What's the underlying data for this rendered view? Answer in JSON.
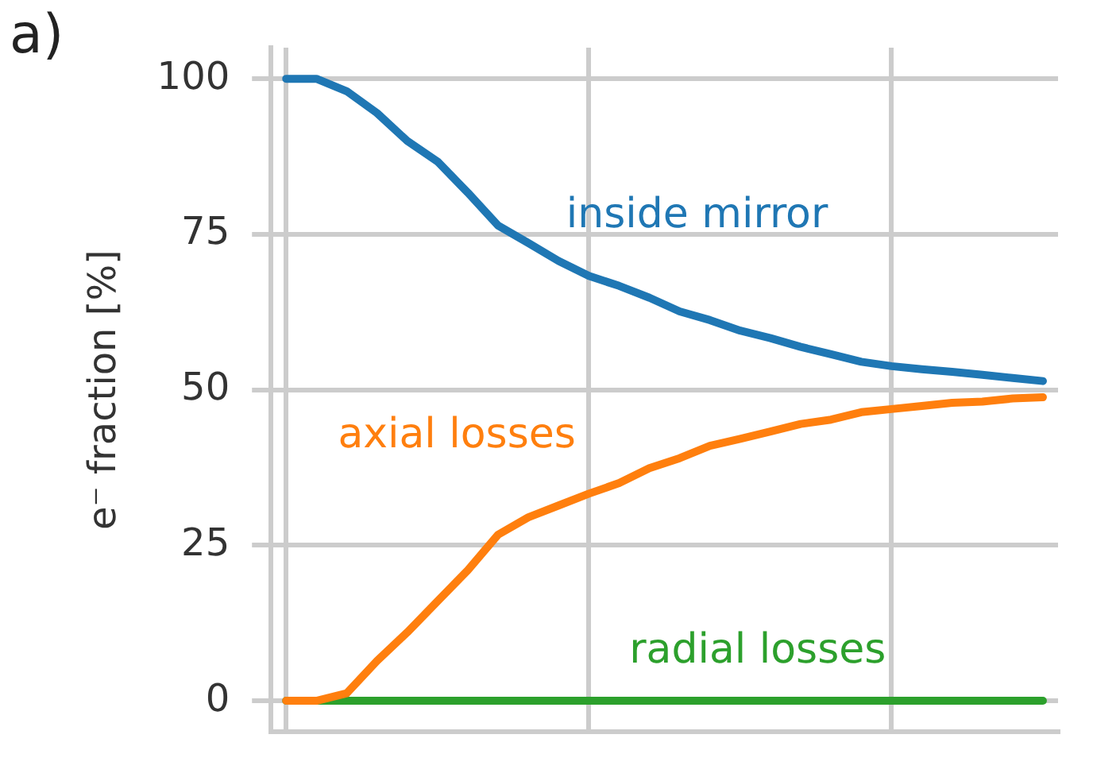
{
  "chart_data": {
    "type": "line",
    "title": "a)",
    "ylabel": "e⁻ fraction [%]",
    "categories": [
      null,
      null,
      null,
      null,
      null,
      null,
      null,
      null,
      null,
      null,
      null,
      null,
      null,
      null,
      null,
      null,
      null,
      null,
      null,
      null,
      null,
      null,
      null,
      null,
      null,
      null
    ],
    "series": [
      {
        "name": "inside mirror",
        "color": "#1f77b4",
        "values": [
          100,
          100,
          98,
          94.5,
          90,
          86.7,
          81.7,
          76.4,
          73.6,
          70.7,
          68.3,
          66.7,
          64.8,
          62.6,
          61.2,
          59.5,
          58.3,
          56.9,
          55.7,
          54.5,
          53.8,
          53.3,
          52.9,
          52.4,
          51.9,
          51.4
        ]
      },
      {
        "name": "axial losses",
        "color": "#ff7f0e",
        "values": [
          0,
          0,
          1.2,
          6.4,
          11,
          16,
          21,
          26.7,
          29.5,
          31.4,
          33.3,
          35,
          37.4,
          39,
          41,
          42.1,
          43.3,
          44.5,
          45.2,
          46.4,
          46.9,
          47.4,
          47.9,
          48.1,
          48.6,
          48.8
        ]
      },
      {
        "name": "radial losses",
        "color": "#2ca02c",
        "values": [
          0,
          0,
          0,
          0,
          0,
          0,
          0,
          0,
          0,
          0,
          0,
          0,
          0,
          0,
          0,
          0,
          0,
          0,
          0,
          0,
          0,
          0,
          0,
          0,
          0,
          0
        ]
      }
    ],
    "ylim": [
      -5,
      105
    ],
    "yticks": [
      0,
      25,
      50,
      75,
      100
    ],
    "grid": true,
    "legend": false,
    "marker": "none",
    "line_style": "solid",
    "tick_labels": "y"
  }
}
